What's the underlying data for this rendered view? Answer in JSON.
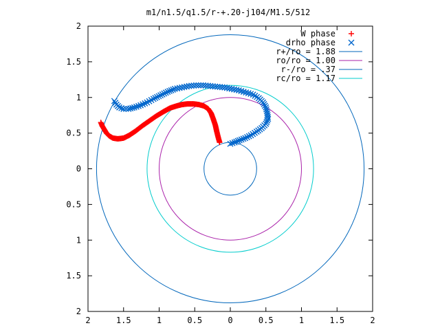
{
  "chart_data": {
    "type": "scatter",
    "title": "m1/n1.5/q1.5/r-+.20-j104/M1.5/512",
    "xlabel": "",
    "ylabel": "",
    "xlim": [
      2,
      -2
    ],
    "ylim": [
      -2,
      2
    ],
    "x_tick_labels": [
      "2",
      "1.5",
      "1",
      "0.5",
      "0",
      "0.5",
      "1",
      "1.5",
      "2"
    ],
    "y_tick_labels": [
      "2",
      "1.5",
      "1",
      "0.5",
      "0",
      "0.5",
      "1",
      "1.5",
      "2"
    ],
    "grid": false,
    "legend_position": "top-right",
    "series": [
      {
        "name": "W phase",
        "kind": "points",
        "marker": "+",
        "color": "#ff0000",
        "points": [
          [
            1.82,
            0.65
          ],
          [
            1.8,
            0.6
          ],
          [
            1.77,
            0.55
          ],
          [
            1.74,
            0.5
          ],
          [
            1.7,
            0.46
          ],
          [
            1.65,
            0.43
          ],
          [
            1.58,
            0.42
          ],
          [
            1.5,
            0.43
          ],
          [
            1.42,
            0.47
          ],
          [
            1.33,
            0.53
          ],
          [
            1.24,
            0.6
          ],
          [
            1.14,
            0.67
          ],
          [
            1.04,
            0.74
          ],
          [
            0.94,
            0.8
          ],
          [
            0.85,
            0.85
          ],
          [
            0.76,
            0.88
          ],
          [
            0.68,
            0.9
          ],
          [
            0.6,
            0.91
          ],
          [
            0.52,
            0.91
          ],
          [
            0.44,
            0.9
          ],
          [
            0.37,
            0.88
          ],
          [
            0.31,
            0.84
          ],
          [
            0.27,
            0.78
          ],
          [
            0.24,
            0.7
          ],
          [
            0.21,
            0.61
          ],
          [
            0.19,
            0.52
          ],
          [
            0.17,
            0.44
          ],
          [
            0.15,
            0.37
          ]
        ]
      },
      {
        "name": "drho phase",
        "kind": "points",
        "marker": "x",
        "color": "#0066cc",
        "points": [
          [
            1.63,
            0.95
          ],
          [
            1.6,
            0.9
          ],
          [
            1.56,
            0.86
          ],
          [
            1.5,
            0.84
          ],
          [
            1.43,
            0.84
          ],
          [
            1.35,
            0.86
          ],
          [
            1.26,
            0.89
          ],
          [
            1.17,
            0.93
          ],
          [
            1.08,
            0.98
          ],
          [
            0.98,
            1.03
          ],
          [
            0.88,
            1.08
          ],
          [
            0.78,
            1.12
          ],
          [
            0.68,
            1.14
          ],
          [
            0.58,
            1.16
          ],
          [
            0.48,
            1.17
          ],
          [
            0.38,
            1.17
          ],
          [
            0.28,
            1.16
          ],
          [
            0.18,
            1.15
          ],
          [
            0.08,
            1.14
          ],
          [
            -0.02,
            1.12
          ],
          [
            -0.12,
            1.1
          ],
          [
            -0.22,
            1.07
          ],
          [
            -0.32,
            1.04
          ],
          [
            -0.4,
            0.99
          ],
          [
            -0.46,
            0.93
          ],
          [
            -0.5,
            0.86
          ],
          [
            -0.52,
            0.78
          ],
          [
            -0.53,
            0.7
          ],
          [
            -0.5,
            0.63
          ],
          [
            -0.44,
            0.57
          ],
          [
            -0.37,
            0.52
          ],
          [
            -0.29,
            0.47
          ],
          [
            -0.21,
            0.43
          ],
          [
            -0.13,
            0.4
          ],
          [
            -0.06,
            0.37
          ],
          [
            0.0,
            0.35
          ]
        ]
      },
      {
        "name": "r+/ro = 1.88",
        "kind": "circle",
        "radius": 1.88,
        "color": "#0066bb"
      },
      {
        "name": "ro/ro = 1.00",
        "kind": "circle",
        "radius": 1.0,
        "color": "#aa22aa"
      },
      {
        "name": "r-/ro = .37",
        "kind": "circle",
        "radius": 0.37,
        "color": "#0066bb"
      },
      {
        "name": "rc/ro = 1.17",
        "kind": "circle",
        "radius": 1.17,
        "color": "#00cccc"
      }
    ]
  }
}
